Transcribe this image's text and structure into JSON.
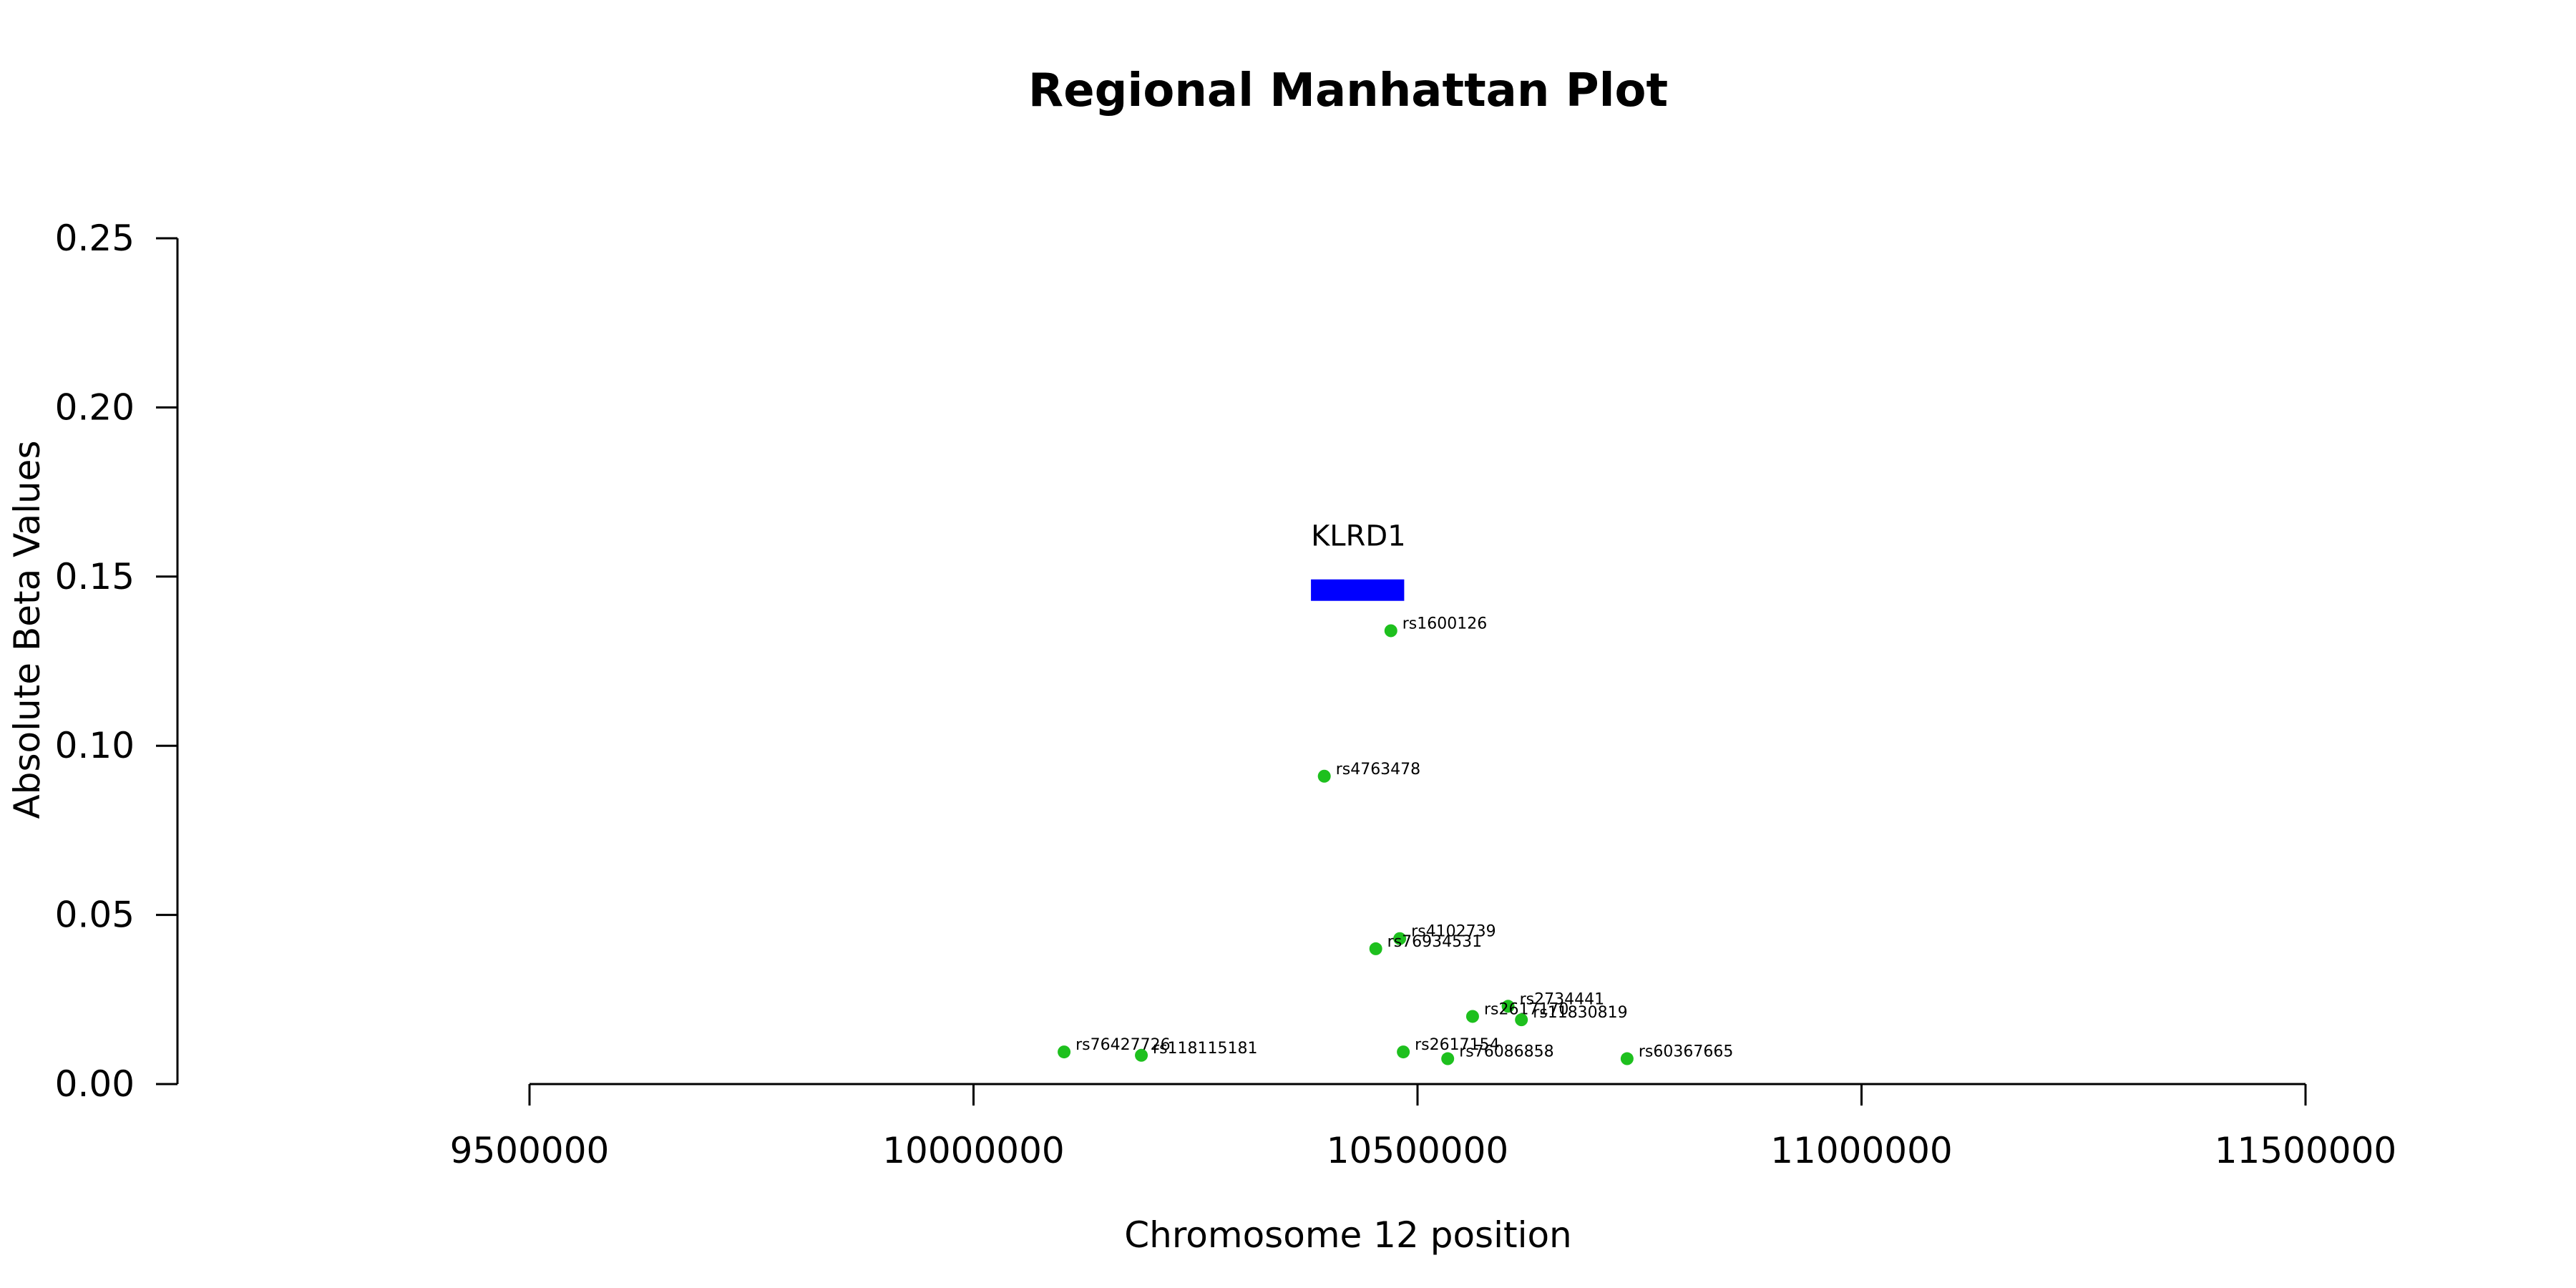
{
  "chart_data": {
    "type": "scatter",
    "title": "Regional Manhattan Plot",
    "xlabel": "Chromosome 12 position",
    "ylabel": "Absolute Beta Values",
    "xlim": [
      9500000,
      11500000
    ],
    "ylim": [
      0,
      0.25
    ],
    "xticks": [
      9500000,
      10000000,
      10500000,
      11000000,
      11500000
    ],
    "xtick_labels": [
      "9500000",
      "10000000",
      "10500000",
      "11000000",
      "11500000"
    ],
    "yticks": [
      0,
      0.05,
      0.1,
      0.15,
      0.2,
      0.25
    ],
    "ytick_labels": [
      "0.00",
      "0.05",
      "0.10",
      "0.15",
      "0.20",
      "0.25"
    ],
    "grid": false,
    "point_color": "#1ec01e",
    "gene_color": "#0000ff",
    "gene": {
      "name": "KLRD1",
      "start": 10380000,
      "end": 10485000,
      "y": 0.146
    },
    "points": [
      {
        "label": "rs1600126",
        "x": 10470000,
        "y": 0.134
      },
      {
        "label": "rs4763478",
        "x": 10395000,
        "y": 0.091
      },
      {
        "label": "rs4102739",
        "x": 10480000,
        "y": 0.043
      },
      {
        "label": "rs76934531",
        "x": 10453000,
        "y": 0.04
      },
      {
        "label": "rs2734441",
        "x": 10602000,
        "y": 0.023
      },
      {
        "label": "rs2617170",
        "x": 10562000,
        "y": 0.02
      },
      {
        "label": "rs11830819",
        "x": 10617000,
        "y": 0.019
      },
      {
        "label": "rs76427726",
        "x": 10102000,
        "y": 0.0095
      },
      {
        "label": "rs118115181",
        "x": 10189000,
        "y": 0.0085
      },
      {
        "label": "rs2617154",
        "x": 10484000,
        "y": 0.0095
      },
      {
        "label": "rs76086858",
        "x": 10534000,
        "y": 0.0075
      },
      {
        "label": "rs60367665",
        "x": 10736000,
        "y": 0.0075
      }
    ]
  }
}
